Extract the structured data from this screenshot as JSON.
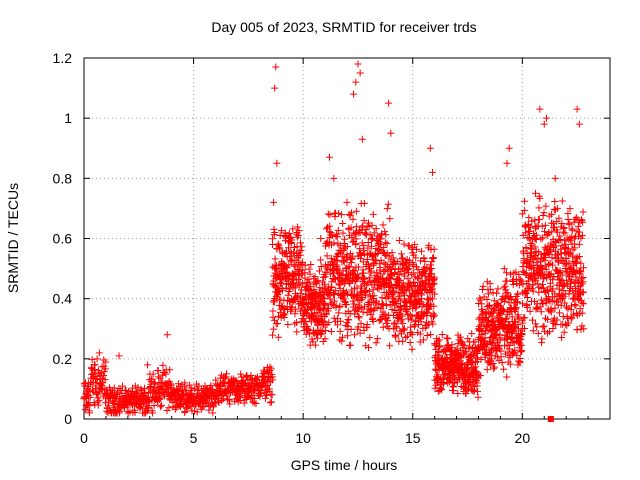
{
  "chart_data": {
    "type": "scatter",
    "title": "Day 005 of 2023, SRMTID for receiver trds",
    "xlabel": "GPS time / hours",
    "ylabel": "SRMTID / TECUs",
    "xlim": [
      0,
      24
    ],
    "ylim": [
      0,
      1.2
    ],
    "xticks": [
      0,
      5,
      10,
      15,
      20
    ],
    "yticks": [
      0,
      0.2,
      0.4,
      0.6,
      0.8,
      1.0,
      1.2
    ],
    "xtick_labels": [
      "0",
      "5",
      "10",
      "15",
      "20"
    ],
    "ytick_labels": [
      "0",
      "0.2",
      "0.4",
      "0.6",
      "0.8",
      "1",
      "1.2"
    ],
    "grid": true,
    "marker": "+",
    "color": "#ff0000",
    "series": [
      {
        "name": "SRMTID",
        "x": [
          0.0,
          0.2,
          0.4,
          0.6,
          0.8,
          1.0,
          1.2,
          1.4,
          1.6,
          1.8,
          2.0,
          2.2,
          2.4,
          2.6,
          2.8,
          3.0,
          3.2,
          3.4,
          3.6,
          3.8,
          4.0,
          4.2,
          4.4,
          4.6,
          4.8,
          5.0,
          5.2,
          5.4,
          5.6,
          5.8,
          6.0,
          6.2,
          6.4,
          6.6,
          6.8,
          7.0,
          7.2,
          7.4,
          7.6,
          7.8,
          8.0,
          8.2,
          8.4,
          8.6,
          8.8,
          9.0,
          9.2,
          9.4,
          9.6,
          9.8,
          10.0,
          10.2,
          10.4,
          10.6,
          10.8,
          11.0,
          11.2,
          11.4,
          11.6,
          11.8,
          12.0,
          12.2,
          12.4,
          12.6,
          12.8,
          13.0,
          13.2,
          13.4,
          13.6,
          13.8,
          14.0,
          14.2,
          14.4,
          14.6,
          14.8,
          15.0,
          15.2,
          15.4,
          15.6,
          15.8,
          16.0,
          16.2,
          16.4,
          16.6,
          16.8,
          17.0,
          17.2,
          17.4,
          17.6,
          17.8,
          18.0,
          18.2,
          18.4,
          18.6,
          18.8,
          19.0,
          19.2,
          19.4,
          19.6,
          19.8,
          20.0,
          20.2,
          20.4,
          20.6,
          20.8,
          21.0,
          21.2,
          21.4,
          21.6,
          21.8,
          22.0,
          22.2,
          22.4,
          22.6,
          22.8,
          8.7,
          8.75,
          8.8,
          8.65,
          12.5,
          12.6,
          12.4,
          12.3,
          13.9,
          14.0,
          15.8,
          15.9,
          20.8,
          21.0,
          21.1,
          22.5,
          22.6,
          8.6,
          8.7,
          11.2,
          11.4,
          12.7,
          12.0,
          13.2,
          3.8,
          2.9,
          1.6,
          0.7,
          0.5,
          19.3,
          19.4,
          20.6,
          21.5
        ],
        "y": [
          0.07,
          0.12,
          0.15,
          0.2,
          0.1,
          0.08,
          0.07,
          0.06,
          0.05,
          0.06,
          0.04,
          0.05,
          0.07,
          0.08,
          0.06,
          0.1,
          0.12,
          0.14,
          0.11,
          0.09,
          0.08,
          0.06,
          0.1,
          0.12,
          0.08,
          0.05,
          0.06,
          0.04,
          0.07,
          0.09,
          0.08,
          0.1,
          0.09,
          0.11,
          0.1,
          0.09,
          0.12,
          0.11,
          0.1,
          0.13,
          0.12,
          0.14,
          0.15,
          0.13,
          0.5,
          0.45,
          0.55,
          0.6,
          0.48,
          0.52,
          0.35,
          0.3,
          0.4,
          0.45,
          0.6,
          0.38,
          0.42,
          0.5,
          0.55,
          0.65,
          0.48,
          0.52,
          0.58,
          0.62,
          0.45,
          0.5,
          0.4,
          0.55,
          0.38,
          0.42,
          0.48,
          0.5,
          0.46,
          0.44,
          0.5,
          0.52,
          0.42,
          0.4,
          0.46,
          0.5,
          0.25,
          0.2,
          0.18,
          0.15,
          0.12,
          0.2,
          0.15,
          0.1,
          0.14,
          0.22,
          0.3,
          0.35,
          0.25,
          0.2,
          0.28,
          0.35,
          0.4,
          0.3,
          0.22,
          0.18,
          0.3,
          0.45,
          0.55,
          0.6,
          0.5,
          0.55,
          0.62,
          0.58,
          0.7,
          0.65,
          0.55,
          0.5,
          0.4,
          0.35,
          0.3,
          1.1,
          1.17,
          0.85,
          0.72,
          1.18,
          1.15,
          1.12,
          1.08,
          1.05,
          0.95,
          0.9,
          0.82,
          1.03,
          0.98,
          1.0,
          1.03,
          0.98,
          0.58,
          0.62,
          0.87,
          0.8,
          0.93,
          0.72,
          0.68,
          0.28,
          0.18,
          0.21,
          0.22,
          0.18,
          0.85,
          0.9,
          0.75,
          0.8
        ]
      }
    ],
    "marker_square": {
      "x": 21.3,
      "y": 0.0
    }
  }
}
